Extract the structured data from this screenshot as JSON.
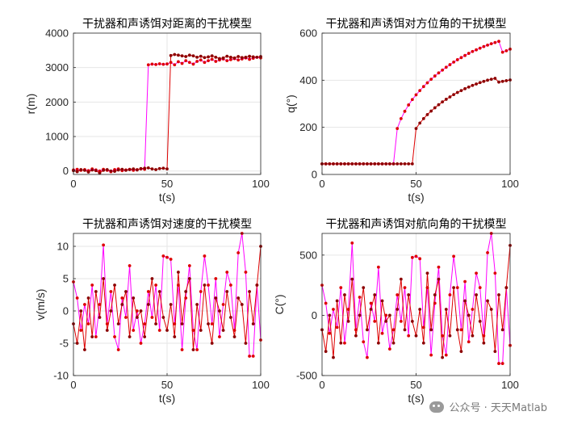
{
  "watermark": {
    "icon": "wechat-icon",
    "text": "公众号 · 天天Matlab"
  },
  "colors": {
    "series_a": "#dd0000",
    "series_b": "#ff00ff",
    "marker_a": "#8b0000",
    "grid": "#e6e6e6",
    "axis": "#262626"
  },
  "chart_data": [
    {
      "type": "line",
      "title": "干扰器和声诱饵对距离的干扰模型",
      "xlabel": "t(s)",
      "ylabel": "r(m)",
      "xlim": [
        0,
        100
      ],
      "ylim": [
        -100,
        4000
      ],
      "xticks": [
        "0",
        "50",
        "100"
      ],
      "yticks": [
        "0",
        "1000",
        "2000",
        "3000",
        "4000"
      ],
      "grid": true,
      "series": [
        {
          "x": [
            0,
            2,
            4,
            6,
            8,
            10,
            12,
            14,
            16,
            18,
            20,
            22,
            24,
            26,
            28,
            30,
            32,
            34,
            36,
            38,
            40,
            42,
            44,
            46,
            48,
            50,
            52,
            54,
            56,
            58,
            60,
            62,
            64,
            66,
            68,
            70,
            72,
            74,
            76,
            78,
            80,
            82,
            84,
            86,
            88,
            90,
            92,
            94,
            96,
            98,
            100
          ],
          "values": [
            30,
            50,
            20,
            40,
            10,
            60,
            30,
            0,
            50,
            20,
            -20,
            40,
            60,
            10,
            30,
            50,
            20,
            40,
            60,
            50,
            3080,
            3100,
            3090,
            3110,
            3095,
            3105,
            3150,
            3080,
            3170,
            3120,
            3200,
            3150,
            3100,
            3180,
            3220,
            3150,
            3200,
            3240,
            3180,
            3220,
            3250,
            3200,
            3230,
            3260,
            3220,
            3250,
            3280,
            3240,
            3270,
            3300,
            3280
          ]
        },
        {
          "x": [
            0,
            2,
            4,
            6,
            8,
            10,
            12,
            14,
            16,
            18,
            20,
            22,
            24,
            26,
            28,
            30,
            32,
            34,
            36,
            38,
            40,
            42,
            44,
            46,
            48,
            50,
            52,
            54,
            56,
            58,
            60,
            62,
            64,
            66,
            68,
            70,
            72,
            74,
            76,
            78,
            80,
            82,
            84,
            86,
            88,
            90,
            92,
            94,
            96,
            98,
            100
          ],
          "values": [
            10,
            -20,
            40,
            20,
            -30,
            30,
            10,
            -60,
            20,
            40,
            0,
            -10,
            30,
            50,
            20,
            40,
            60,
            30,
            70,
            80,
            90,
            60,
            40,
            70,
            80,
            60,
            3350,
            3380,
            3360,
            3340,
            3320,
            3360,
            3340,
            3300,
            3330,
            3290,
            3310,
            3340,
            3300,
            3260,
            3280,
            3330,
            3300,
            3280,
            3320,
            3290,
            3300,
            3330,
            3310,
            3300,
            3320
          ]
        }
      ]
    },
    {
      "type": "line",
      "title": "干扰器和声诱饵对方位角的干扰模型",
      "xlabel": "t(s)",
      "ylabel": "q(°)",
      "xlim": [
        0,
        100
      ],
      "ylim": [
        0,
        600
      ],
      "xticks": [
        "0",
        "50",
        "100"
      ],
      "yticks": [
        "0",
        "200",
        "400",
        "600"
      ],
      "grid": true,
      "series": [
        {
          "x": [
            0,
            2,
            4,
            6,
            8,
            10,
            12,
            14,
            16,
            18,
            20,
            22,
            24,
            26,
            28,
            30,
            32,
            34,
            36,
            38,
            40,
            42,
            44,
            46,
            48,
            50,
            52,
            54,
            56,
            58,
            60,
            62,
            64,
            66,
            68,
            70,
            72,
            74,
            76,
            78,
            80,
            82,
            84,
            86,
            88,
            90,
            92,
            94,
            96,
            98,
            100
          ],
          "values": [
            45,
            45,
            45,
            45,
            45,
            45,
            45,
            45,
            45,
            45,
            45,
            45,
            45,
            45,
            45,
            45,
            45,
            45,
            45,
            45,
            195,
            237,
            268,
            295,
            318,
            338,
            356,
            373,
            389,
            404,
            418,
            431,
            443,
            455,
            466,
            477,
            487,
            496,
            505,
            514,
            522,
            529,
            536,
            543,
            549,
            555,
            560,
            565,
            519,
            525,
            532
          ]
        },
        {
          "x": [
            0,
            2,
            4,
            6,
            8,
            10,
            12,
            14,
            16,
            18,
            20,
            22,
            24,
            26,
            28,
            30,
            32,
            34,
            36,
            38,
            40,
            42,
            44,
            46,
            48,
            50,
            52,
            54,
            56,
            58,
            60,
            62,
            64,
            66,
            68,
            70,
            72,
            74,
            76,
            78,
            80,
            82,
            84,
            86,
            88,
            90,
            92,
            94,
            96,
            98,
            100
          ],
          "values": [
            45,
            45,
            45,
            45,
            45,
            45,
            45,
            45,
            45,
            45,
            45,
            45,
            45,
            45,
            45,
            45,
            45,
            45,
            45,
            45,
            45,
            45,
            45,
            45,
            45,
            195,
            218,
            237,
            254,
            269,
            283,
            296,
            308,
            319,
            329,
            339,
            348,
            356,
            364,
            371,
            378,
            384,
            390,
            395,
            400,
            404,
            408,
            392,
            395,
            398,
            401
          ]
        }
      ]
    },
    {
      "type": "line",
      "title": "干扰器和声诱饵对速度的干扰模型",
      "xlabel": "t(s)",
      "ylabel": "v(m/s)",
      "xlim": [
        0,
        100
      ],
      "ylim": [
        -10,
        12
      ],
      "xticks": [
        "0",
        "50",
        "100"
      ],
      "yticks": [
        "-10",
        "-5",
        "0",
        "5",
        "10"
      ],
      "grid": true,
      "series": [
        {
          "x": [
            0,
            2,
            4,
            6,
            8,
            10,
            12,
            14,
            16,
            18,
            20,
            22,
            24,
            26,
            28,
            30,
            32,
            34,
            36,
            38,
            40,
            42,
            44,
            46,
            48,
            50,
            52,
            54,
            56,
            58,
            60,
            62,
            64,
            66,
            68,
            70,
            72,
            74,
            76,
            78,
            80,
            82,
            84,
            86,
            88,
            90,
            92,
            94,
            96,
            98,
            100
          ],
          "values": [
            4.5,
            2,
            -3,
            1,
            -2,
            4,
            -4,
            1,
            10.2,
            -2,
            3,
            -4,
            -6,
            2,
            -1,
            7,
            -3,
            0,
            -5,
            -2,
            3,
            -1,
            4,
            -3,
            8.5,
            8.3,
            8,
            -2,
            4,
            -6,
            2,
            7,
            -3,
            -6,
            3,
            8.5,
            4,
            -2,
            5,
            -4,
            1,
            6,
            4,
            -3,
            9,
            12,
            6,
            -7,
            -7,
            4,
            -4.5
          ]
        },
        {
          "x": [
            0,
            2,
            4,
            6,
            8,
            10,
            12,
            14,
            16,
            18,
            20,
            22,
            24,
            26,
            28,
            30,
            32,
            34,
            36,
            38,
            40,
            42,
            44,
            46,
            48,
            50,
            52,
            54,
            56,
            58,
            60,
            62,
            64,
            66,
            68,
            70,
            72,
            74,
            76,
            78,
            80,
            82,
            84,
            86,
            88,
            90,
            92,
            94,
            96,
            98,
            100
          ],
          "values": [
            -2,
            -5,
            0,
            -6,
            2,
            -4,
            3,
            -1,
            5,
            -3,
            0,
            4,
            -2,
            1,
            3,
            -4,
            2,
            -1,
            0,
            -4,
            1,
            5,
            -2,
            3,
            -1,
            -3,
            1,
            -4,
            6,
            -2,
            3,
            5,
            -6,
            1,
            -3,
            4,
            -2,
            -5,
            2,
            0,
            -3,
            3,
            -1,
            -4,
            2,
            1,
            -5,
            3,
            -2,
            4,
            10
          ]
        }
      ]
    },
    {
      "type": "line",
      "title": "干扰器和声诱饵对航向角的干扰模型",
      "xlabel": "t(s)",
      "ylabel": "C(°)",
      "xlim": [
        0,
        100
      ],
      "ylim": [
        -500,
        680
      ],
      "xticks": [
        "0",
        "50",
        "100"
      ],
      "yticks": [
        "-500",
        "0",
        "500"
      ],
      "grid": true,
      "series": [
        {
          "x": [
            0,
            2,
            4,
            6,
            8,
            10,
            12,
            14,
            16,
            18,
            20,
            22,
            24,
            26,
            28,
            30,
            32,
            34,
            36,
            38,
            40,
            42,
            44,
            46,
            48,
            50,
            52,
            54,
            56,
            58,
            60,
            62,
            64,
            66,
            68,
            70,
            72,
            74,
            76,
            78,
            80,
            82,
            84,
            86,
            88,
            90,
            92,
            94,
            96,
            98,
            100
          ],
          "values": [
            250,
            100,
            -150,
            50,
            -100,
            230,
            -230,
            50,
            600,
            -120,
            150,
            -220,
            -350,
            100,
            -50,
            400,
            -150,
            0,
            -280,
            -120,
            170,
            -50,
            230,
            -170,
            480,
            490,
            470,
            -100,
            230,
            -330,
            100,
            400,
            -170,
            -330,
            170,
            490,
            230,
            -120,
            280,
            -220,
            50,
            350,
            230,
            -170,
            520,
            680,
            350,
            -400,
            -400,
            230,
            -250
          ]
        },
        {
          "x": [
            0,
            2,
            4,
            6,
            8,
            10,
            12,
            14,
            16,
            18,
            20,
            22,
            24,
            26,
            28,
            30,
            32,
            34,
            36,
            38,
            40,
            42,
            44,
            46,
            48,
            50,
            52,
            54,
            56,
            58,
            60,
            62,
            64,
            66,
            68,
            70,
            72,
            74,
            76,
            78,
            80,
            82,
            84,
            86,
            88,
            90,
            92,
            94,
            96,
            98,
            100
          ],
          "values": [
            -120,
            -300,
            0,
            -350,
            120,
            -230,
            170,
            -50,
            300,
            -170,
            0,
            230,
            -120,
            50,
            170,
            -230,
            120,
            -50,
            0,
            -230,
            50,
            300,
            -120,
            170,
            -50,
            -170,
            50,
            -230,
            350,
            -120,
            170,
            300,
            -350,
            50,
            -170,
            230,
            -120,
            -300,
            120,
            0,
            -170,
            170,
            -50,
            -230,
            120,
            50,
            -300,
            170,
            -120,
            230,
            580
          ]
        }
      ]
    }
  ]
}
